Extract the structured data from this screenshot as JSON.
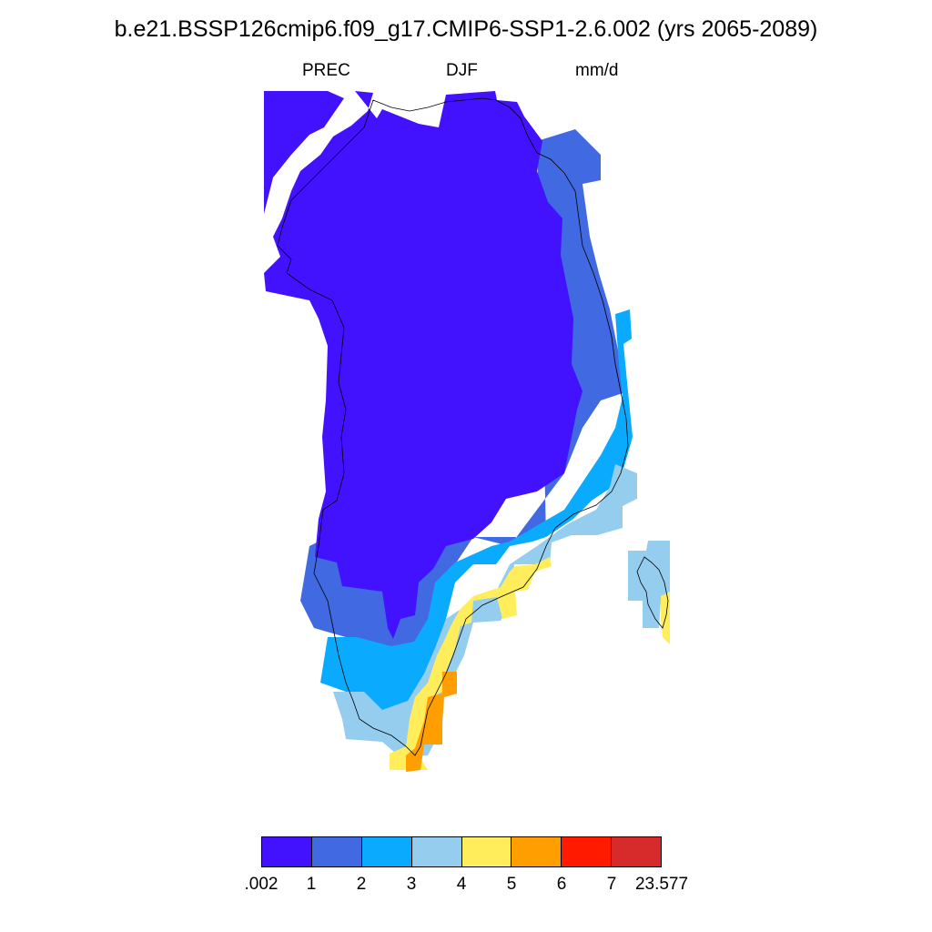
{
  "header": {
    "title": "b.e21.BSSP126cmip6.f09_g17.CMIP6-SSP1-2.6.002 (yrs 2065-2089)",
    "variable": "PREC",
    "season": "DJF",
    "units": "mm/d"
  },
  "colorbar": {
    "colors": [
      "#4212ff",
      "#4169e1",
      "#0aabff",
      "#94cdee",
      "#ffed5c",
      "#ff9e00",
      "#ff1a00",
      "#d72b2b"
    ],
    "labels": [
      ".002",
      "1",
      "2",
      "3",
      "4",
      "5",
      "6",
      "7",
      "23.577"
    ]
  }
}
